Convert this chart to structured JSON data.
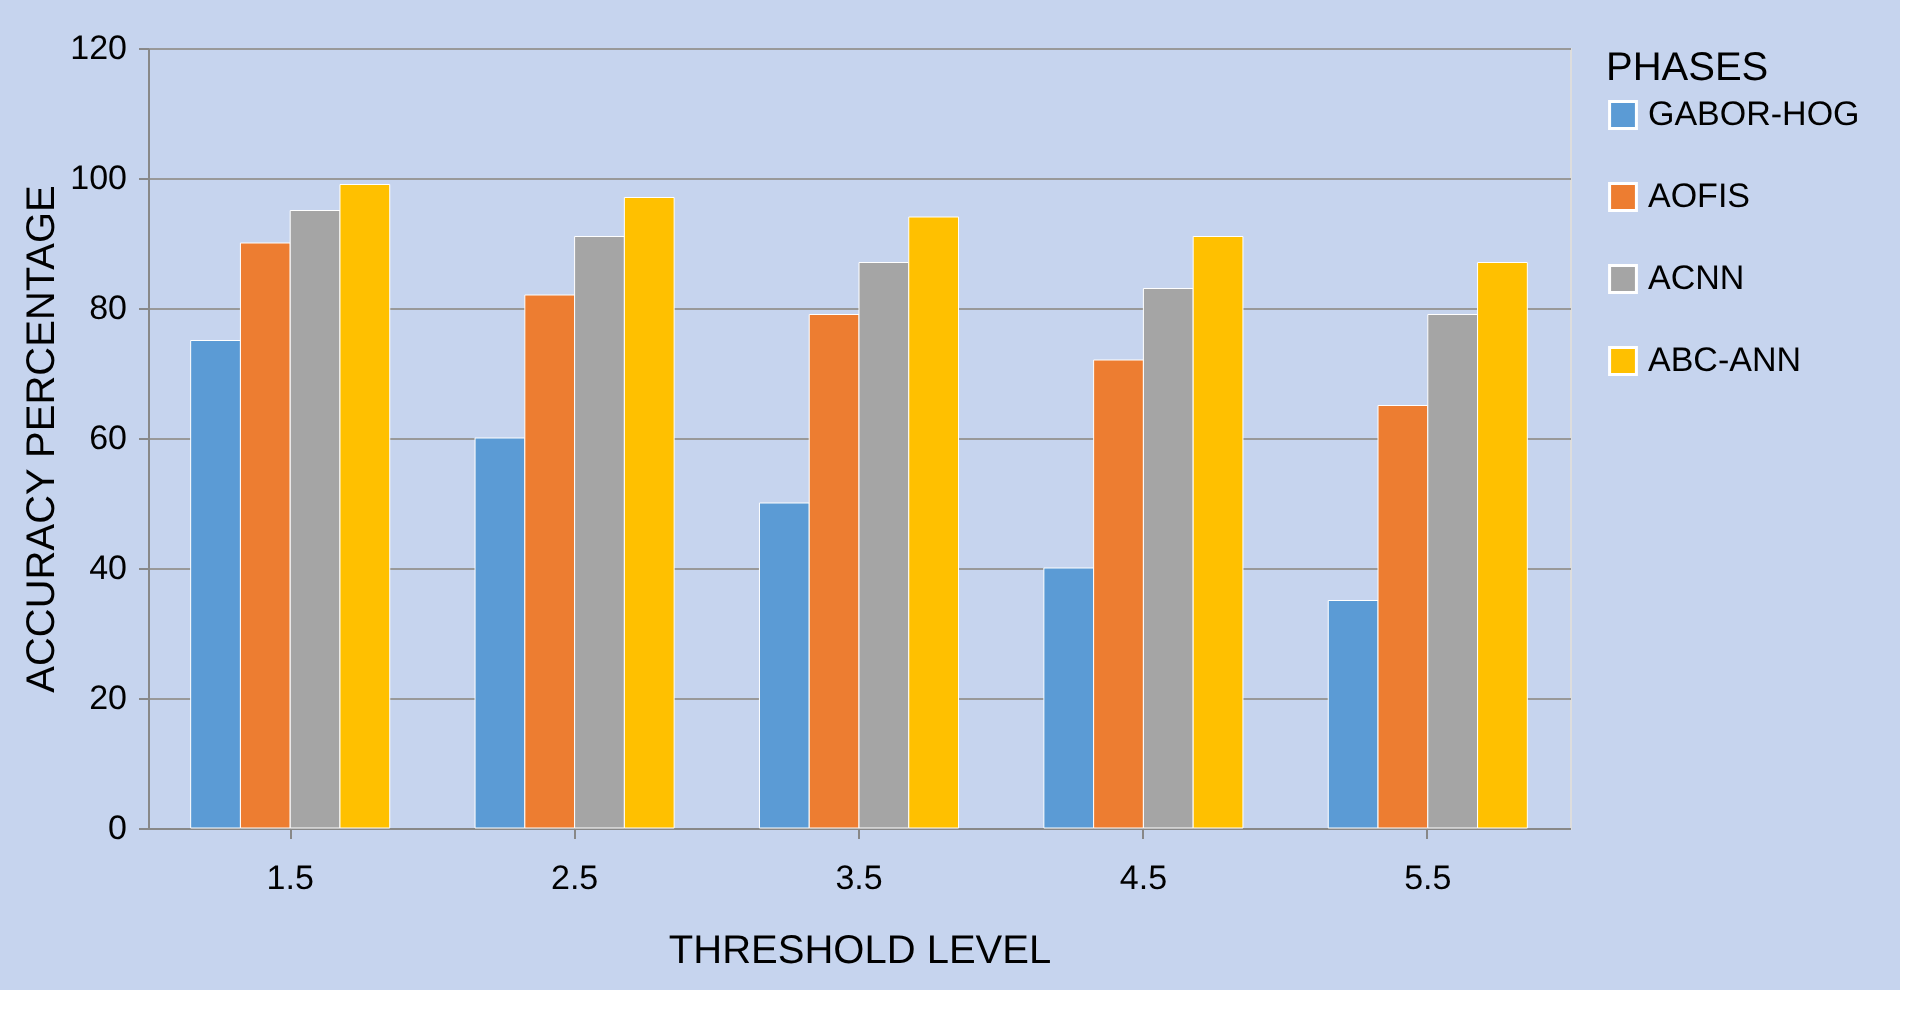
{
  "chart_data": {
    "type": "bar",
    "xlabel": "THRESHOLD LEVEL",
    "ylabel": "ACCURACY PERCENTAGE",
    "legend_title": "PHASES",
    "categories": [
      "1.5",
      "2.5",
      "3.5",
      "4.5",
      "5.5"
    ],
    "series": [
      {
        "name": "GABOR-HOG",
        "color": "#5b9bd5",
        "values": [
          75,
          60,
          50,
          40,
          35
        ]
      },
      {
        "name": "AOFIS",
        "color": "#ed7d31",
        "values": [
          90,
          82,
          79,
          72,
          65
        ]
      },
      {
        "name": "ACNN",
        "color": "#a5a5a5",
        "values": [
          95,
          91,
          87,
          83,
          79
        ]
      },
      {
        "name": "ABC-ANN",
        "color": "#ffc000",
        "values": [
          99,
          97,
          94,
          91,
          87
        ]
      }
    ],
    "ylim": [
      0,
      120
    ],
    "yticks": [
      0,
      20,
      40,
      60,
      80,
      100,
      120
    ],
    "grid": "y",
    "legend": "right"
  }
}
